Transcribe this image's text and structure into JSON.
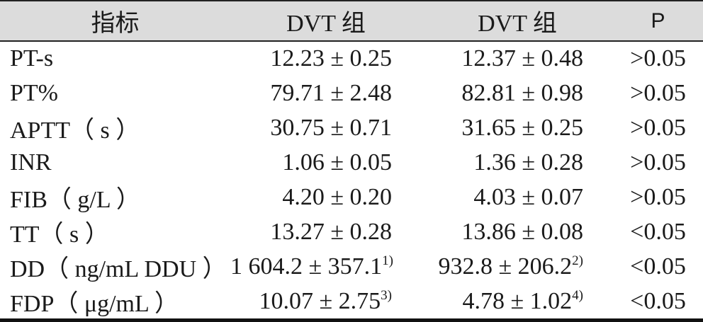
{
  "header": {
    "col_metric": "指标",
    "col_group1": "DVT 组",
    "col_group2": "DVT 组",
    "col_p": "P"
  },
  "rows": [
    {
      "metric": "PT-s",
      "g1": "12.23 ± 0.25",
      "g1_sup": "",
      "g2": "12.37 ± 0.48",
      "g2_sup": "",
      "p": ">0.05"
    },
    {
      "metric": "PT%",
      "g1": "79.71 ± 2.48",
      "g1_sup": "",
      "g2": "82.81 ± 0.98",
      "g2_sup": "",
      "p": ">0.05"
    },
    {
      "metric": "APTT（ s ）",
      "g1": "30.75 ± 0.71",
      "g1_sup": "",
      "g2": "31.65 ± 0.25",
      "g2_sup": "",
      "p": ">0.05"
    },
    {
      "metric": "INR",
      "g1": "1.06 ± 0.05",
      "g1_sup": "",
      "g2": "1.36 ± 0.28",
      "g2_sup": "",
      "p": ">0.05"
    },
    {
      "metric": "FIB（ g/L ）",
      "g1": "4.20 ± 0.20",
      "g1_sup": "",
      "g2": "4.03 ± 0.07",
      "g2_sup": "",
      "p": ">0.05"
    },
    {
      "metric": "TT（ s ）",
      "g1": "13.27 ± 0.28",
      "g1_sup": "",
      "g2": "13.86 ± 0.08",
      "g2_sup": "",
      "p": "<0.05"
    },
    {
      "metric": "DD（ ng/mL DDU ）",
      "g1": "1 604.2 ± 357.1",
      "g1_sup": "1)",
      "g2": "932.8 ± 206.2",
      "g2_sup": "2)",
      "p": "<0.05"
    },
    {
      "metric": "FDP（ μg/mL ）",
      "g1": "10.07 ± 2.75",
      "g1_sup": "3)",
      "g2": "4.78 ± 1.02",
      "g2_sup": "4)",
      "p": "<0.05"
    }
  ]
}
